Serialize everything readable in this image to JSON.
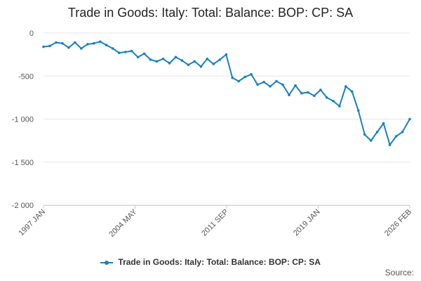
{
  "chart_data": {
    "type": "line",
    "title": "Trade in Goods: Italy: Total: Balance: BOP: CP: SA",
    "xlabel": "",
    "ylabel": "",
    "x_tick_labels": [
      "1997 JAN",
      "2004 MAY",
      "2011 SEP",
      "2019 JAN",
      "2026 FEB"
    ],
    "y_tick_labels": [
      "0",
      "-500",
      "-1 000",
      "-1 500",
      "-2 000"
    ],
    "ylim": [
      -2000,
      0
    ],
    "xlim": [
      "1997-01",
      "2026-02"
    ],
    "grid": true,
    "legend_position": "bottom",
    "series": [
      {
        "name": "Trade in Goods: Italy: Total: Balance: BOP: CP: SA",
        "color": "#1a7fc1",
        "x": [
          "1997-01",
          "1997-07",
          "1998-01",
          "1998-07",
          "1999-01",
          "1999-07",
          "2000-01",
          "2000-07",
          "2001-01",
          "2001-07",
          "2002-01",
          "2002-07",
          "2003-01",
          "2003-07",
          "2004-01",
          "2004-07",
          "2005-01",
          "2005-07",
          "2006-01",
          "2006-07",
          "2007-01",
          "2007-07",
          "2008-01",
          "2008-07",
          "2009-01",
          "2009-07",
          "2010-01",
          "2010-07",
          "2011-01",
          "2011-07",
          "2012-01",
          "2012-07",
          "2013-01",
          "2013-07",
          "2014-01",
          "2014-07",
          "2015-01",
          "2015-07",
          "2016-01",
          "2016-07",
          "2017-01",
          "2017-07",
          "2018-01",
          "2018-07",
          "2019-01",
          "2019-07",
          "2020-01",
          "2020-07",
          "2021-01",
          "2021-07",
          "2022-01",
          "2022-07",
          "2023-01",
          "2023-07",
          "2024-01",
          "2024-07",
          "2025-01",
          "2025-07",
          "2026-02"
        ],
        "values": [
          -160,
          -150,
          -110,
          -120,
          -170,
          -110,
          -180,
          -130,
          -120,
          -100,
          -140,
          -180,
          -230,
          -220,
          -210,
          -280,
          -240,
          -310,
          -330,
          -300,
          -350,
          -280,
          -320,
          -370,
          -330,
          -390,
          -300,
          -360,
          -310,
          -250,
          -520,
          -560,
          -510,
          -480,
          -600,
          -570,
          -620,
          -560,
          -600,
          -720,
          -610,
          -700,
          -690,
          -730,
          -660,
          -750,
          -790,
          -850,
          -620,
          -680,
          -900,
          -1180,
          -1250,
          -1150,
          -1050,
          -1300,
          -1200,
          -1150,
          -1000
        ]
      }
    ]
  },
  "source_label": "Source:"
}
